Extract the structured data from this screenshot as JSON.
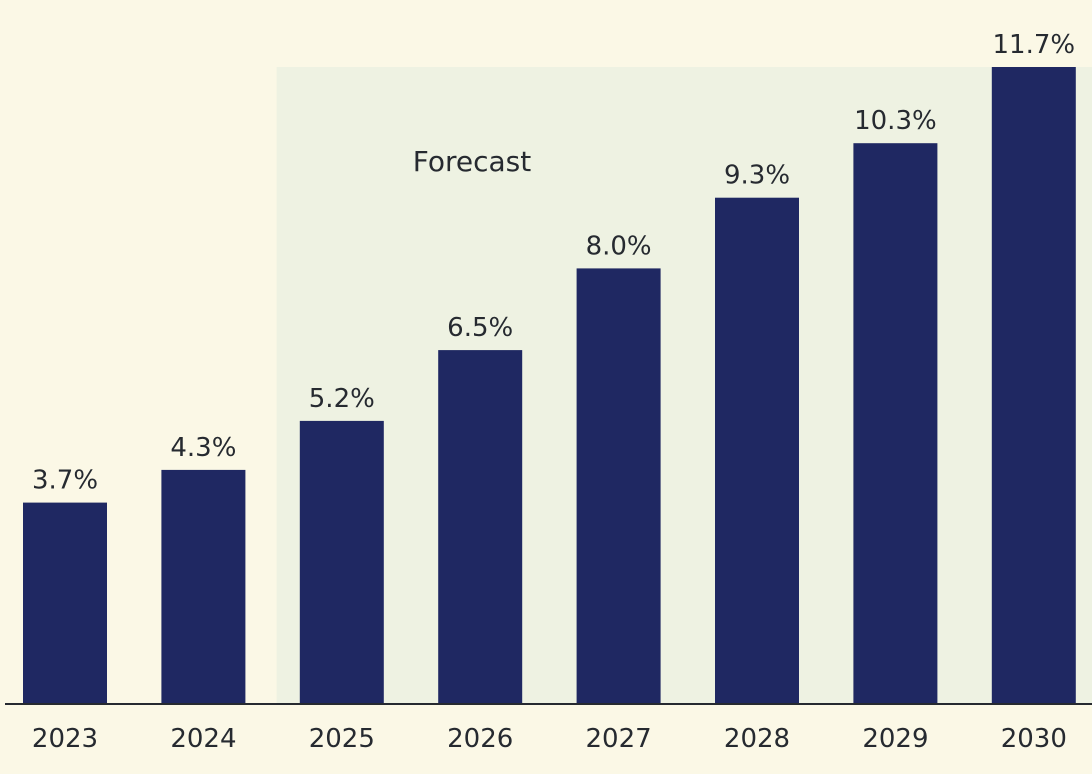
{
  "chart_data": {
    "type": "bar",
    "title": "",
    "xlabel": "",
    "ylabel": "",
    "categories": [
      "2023",
      "2024",
      "2025",
      "2026",
      "2027",
      "2028",
      "2029",
      "2030"
    ],
    "values": [
      3.7,
      4.3,
      5.2,
      6.5,
      8.0,
      9.3,
      10.3,
      11.7
    ],
    "value_labels": [
      "3.7%",
      "4.3%",
      "5.2%",
      "6.5%",
      "8.0%",
      "9.3%",
      "10.3%",
      "11.7%"
    ],
    "ylim": [
      0,
      11.7
    ],
    "grid": false,
    "forecast_region": {
      "label": "Forecast",
      "from_category": "2025",
      "to_category": "2030"
    },
    "colors": {
      "background": "#fbf8e6",
      "forecast_shade": "#eef2e2",
      "bar": "#1f2862",
      "text": "#262a30",
      "axis": "#262a30"
    }
  }
}
